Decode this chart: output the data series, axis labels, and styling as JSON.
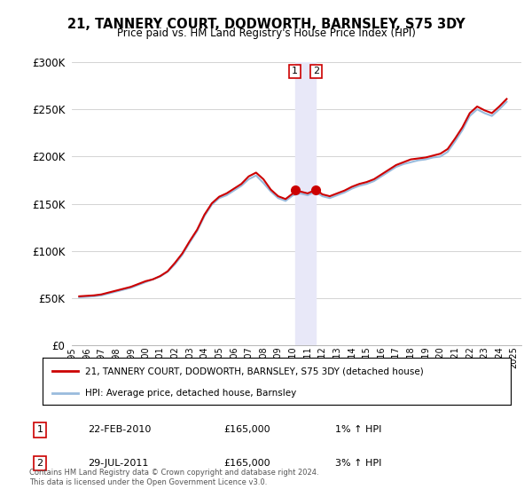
{
  "title": "21, TANNERY COURT, DODWORTH, BARNSLEY, S75 3DY",
  "subtitle": "Price paid vs. HM Land Registry's House Price Index (HPI)",
  "legend_entries": [
    "21, TANNERY COURT, DODWORTH, BARNSLEY, S75 3DY (detached house)",
    "HPI: Average price, detached house, Barnsley"
  ],
  "annotations": [
    {
      "label": "1",
      "date": 2010.13,
      "price": 165000
    },
    {
      "label": "2",
      "date": 2011.57,
      "price": 165000
    }
  ],
  "annotation_texts": [
    {
      "num": "1",
      "date": "22-FEB-2010",
      "price": "£165,000",
      "hpi": "1% ↑ HPI"
    },
    {
      "num": "2",
      "date": "29-JUL-2011",
      "price": "£165,000",
      "hpi": "3% ↑ HPI"
    }
  ],
  "footer": "Contains HM Land Registry data © Crown copyright and database right 2024.\nThis data is licensed under the Open Government Licence v3.0.",
  "red_line_color": "#cc0000",
  "blue_line_color": "#99bbdd",
  "shade_color": "#e8e8f8",
  "background_color": "#ffffff",
  "ylim": [
    0,
    300000
  ],
  "yticks": [
    0,
    50000,
    100000,
    150000,
    200000,
    250000,
    300000
  ],
  "ytick_labels": [
    "£0",
    "£50K",
    "£100K",
    "£150K",
    "£200K",
    "£250K",
    "£300K"
  ],
  "hpi_data": {
    "years": [
      1995.5,
      1996.0,
      1996.5,
      1997.0,
      1997.5,
      1998.0,
      1998.5,
      1999.0,
      1999.5,
      2000.0,
      2000.5,
      2001.0,
      2001.5,
      2002.0,
      2002.5,
      2003.0,
      2003.5,
      2004.0,
      2004.5,
      2005.0,
      2005.5,
      2006.0,
      2006.5,
      2007.0,
      2007.5,
      2008.0,
      2008.5,
      2009.0,
      2009.5,
      2010.0,
      2010.5,
      2011.0,
      2011.5,
      2012.0,
      2012.5,
      2013.0,
      2013.5,
      2014.0,
      2014.5,
      2015.0,
      2015.5,
      2016.0,
      2016.5,
      2017.0,
      2017.5,
      2018.0,
      2018.5,
      2019.0,
      2019.5,
      2020.0,
      2020.5,
      2021.0,
      2021.5,
      2022.0,
      2022.5,
      2023.0,
      2023.5,
      2024.0,
      2024.5
    ],
    "values": [
      51000,
      51500,
      52000,
      53000,
      55000,
      57000,
      59000,
      61000,
      64000,
      67000,
      70000,
      73000,
      78000,
      86000,
      96000,
      109000,
      121000,
      137000,
      149000,
      156000,
      159000,
      164000,
      169000,
      176000,
      180000,
      172000,
      163000,
      156000,
      153000,
      159000,
      161000,
      159000,
      163000,
      158000,
      156000,
      159000,
      162000,
      166000,
      169000,
      171000,
      174000,
      179000,
      184000,
      189000,
      192000,
      194000,
      196000,
      197000,
      199000,
      200000,
      205000,
      216000,
      228000,
      243000,
      250000,
      246000,
      243000,
      250000,
      258000
    ]
  },
  "red_data": {
    "years": [
      1995.5,
      1996.0,
      1996.5,
      1997.0,
      1997.5,
      1998.0,
      1998.5,
      1999.0,
      1999.5,
      2000.0,
      2000.5,
      2001.0,
      2001.5,
      2002.0,
      2002.5,
      2003.0,
      2003.5,
      2004.0,
      2004.5,
      2005.0,
      2005.5,
      2006.0,
      2006.5,
      2007.0,
      2007.5,
      2008.0,
      2008.5,
      2009.0,
      2009.5,
      2010.0,
      2010.13,
      2010.5,
      2011.0,
      2011.57,
      2012.0,
      2012.5,
      2013.0,
      2013.5,
      2014.0,
      2014.5,
      2015.0,
      2015.5,
      2016.0,
      2016.5,
      2017.0,
      2017.5,
      2018.0,
      2018.5,
      2019.0,
      2019.5,
      2020.0,
      2020.5,
      2021.0,
      2021.5,
      2022.0,
      2022.5,
      2023.0,
      2023.5,
      2024.0,
      2024.5
    ],
    "values": [
      52000,
      52500,
      53000,
      54000,
      56000,
      58000,
      60000,
      62000,
      65000,
      68000,
      70000,
      73500,
      78500,
      87500,
      97500,
      110500,
      122500,
      138500,
      150500,
      157500,
      161000,
      166000,
      171000,
      179000,
      183000,
      176000,
      165000,
      158000,
      155000,
      161000,
      165000,
      163000,
      161000,
      165000,
      160000,
      158000,
      161000,
      164000,
      168000,
      171000,
      173000,
      176000,
      181000,
      186000,
      191000,
      194000,
      197000,
      198000,
      199000,
      201000,
      203000,
      208000,
      219000,
      231000,
      246000,
      253000,
      249000,
      246000,
      253000,
      261000
    ]
  }
}
